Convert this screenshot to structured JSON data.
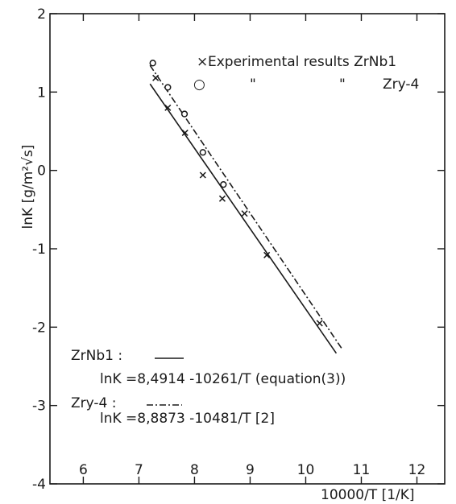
{
  "chart_data": {
    "type": "scatter",
    "xlabel": "10000/T [1/K]",
    "ylabel": "lnK [g/m²√s]",
    "xlim": [
      5.4,
      12.5
    ],
    "ylim": [
      -4,
      2
    ],
    "x_ticks": [
      "6",
      "7",
      "8",
      "9",
      "10",
      "11",
      "12"
    ],
    "y_ticks": [
      "2",
      "1",
      "0",
      "-1",
      "-2",
      "-3",
      "-4"
    ],
    "x_tick_values": [
      6,
      7,
      8,
      9,
      10,
      11,
      12
    ],
    "y_tick_values": [
      2,
      1,
      0,
      -1,
      -2,
      -3,
      -4
    ],
    "grid": false,
    "legend_position": "top-right",
    "series": [
      {
        "name": "Experimental results ZrNb1",
        "marker": "x",
        "points": [
          [
            7.3,
            1.18
          ],
          [
            7.52,
            0.8
          ],
          [
            7.83,
            0.48
          ],
          [
            8.15,
            -0.06
          ],
          [
            8.5,
            -0.36
          ],
          [
            8.9,
            -0.55
          ],
          [
            9.3,
            -1.08
          ],
          [
            10.25,
            -1.95
          ]
        ]
      },
      {
        "name": "Zry-4",
        "marker": "circle",
        "points": [
          [
            7.25,
            1.37
          ],
          [
            7.52,
            1.06
          ],
          [
            7.82,
            0.72
          ],
          [
            8.15,
            0.23
          ],
          [
            8.52,
            -0.18
          ]
        ]
      }
    ],
    "lines": [
      {
        "name": "ZrNb1",
        "style": "solid",
        "intercept": 8.4914,
        "slope": -1.0261,
        "x_range": [
          7.2,
          10.55
        ]
      },
      {
        "name": "Zry-4",
        "style": "dashdot",
        "intercept": 8.8873,
        "slope": -1.0481,
        "x_range": [
          7.2,
          10.65
        ]
      }
    ],
    "legend": {
      "line1_marker": "×",
      "line1_text": "Experimental results ZrNb1",
      "line2_marker": "○",
      "ditto1": "\"",
      "ditto2": "\"",
      "line2_text": "Zry-4"
    },
    "annotations": {
      "zrnb1_label": "ZrNb1 :",
      "zrnb1_eq": "lnK =8,4914 -10261/T   (equation(3))",
      "zry4_label": "Zry-4 :",
      "zry4_eq": "lnK =8,8873 -10481/T [2]"
    }
  }
}
